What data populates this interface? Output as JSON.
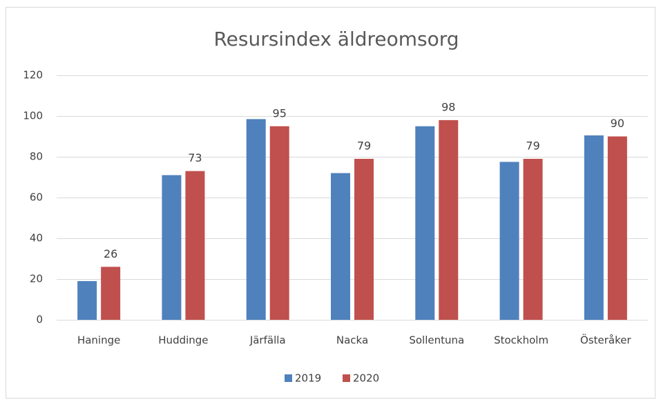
{
  "chart_data": {
    "type": "bar",
    "title": "Resursindex äldreomsorg",
    "categories": [
      "Haninge",
      "Huddinge",
      "Järfälla",
      "Nacka",
      "Sollentuna",
      "Stockholm",
      "Österåker"
    ],
    "series": [
      {
        "name": "2019",
        "color": "#4f81bd",
        "values": [
          19,
          71,
          98.5,
          72,
          95,
          77.5,
          90.5
        ],
        "show_labels": false
      },
      {
        "name": "2020",
        "color": "#c0504d",
        "values": [
          26,
          73,
          95,
          79,
          98,
          79,
          90
        ],
        "show_labels": true
      }
    ],
    "ylim": [
      0,
      120
    ],
    "yticks": [
      0,
      20,
      40,
      60,
      80,
      100,
      120
    ],
    "grid": true,
    "legend": "bottom"
  }
}
